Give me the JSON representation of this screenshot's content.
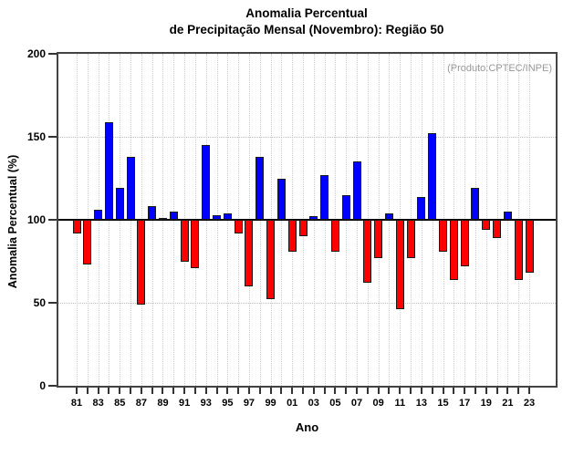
{
  "chart_data": {
    "type": "bar",
    "title_lines": [
      "Anomalia Percentual",
      "de Precipitação Mensal (Novembro): Região 50"
    ],
    "title": "Anomalia Percentual de Precipitação Mensal (Novembro): Região 50",
    "xlabel": "Ano",
    "ylabel": "Anomalia Percentual (%)",
    "annotation": "(Produto:CPTEC/INPE)",
    "ylim": [
      0,
      200
    ],
    "yticks": [
      "0",
      "50",
      "100",
      "150",
      "200"
    ],
    "ytick_values": [
      0,
      50,
      100,
      150,
      200
    ],
    "grid_y_dotted": [
      50,
      150
    ],
    "baseline": 100,
    "grid": "dotted vertical line per year, dotted horizontal at 50 and 150, solid black line at 100",
    "legend_position": "none",
    "categories": [
      "1981",
      "1982",
      "1983",
      "1984",
      "1985",
      "1986",
      "1987",
      "1988",
      "1989",
      "1990",
      "1991",
      "1992",
      "1993",
      "1994",
      "1995",
      "1996",
      "1997",
      "1998",
      "1999",
      "2000",
      "2001",
      "2002",
      "2003",
      "2004",
      "2005",
      "2006",
      "2007",
      "2008",
      "2009",
      "2010",
      "2011",
      "2012",
      "2013",
      "2014",
      "2015",
      "2016",
      "2017",
      "2018",
      "2019",
      "2020",
      "2021",
      "2022",
      "2023"
    ],
    "xtick_labels": [
      "81",
      "83",
      "85",
      "87",
      "89",
      "91",
      "93",
      "95",
      "97",
      "99",
      "01",
      "03",
      "05",
      "07",
      "09",
      "11",
      "13",
      "15",
      "17",
      "19",
      "21",
      "23"
    ],
    "values": [
      92,
      73,
      106,
      159,
      119,
      138,
      49,
      108,
      101,
      105,
      75,
      71,
      145,
      103,
      104,
      92,
      60,
      138,
      52,
      125,
      81,
      90,
      102,
      127,
      81,
      115,
      135,
      62,
      77,
      104,
      46,
      77,
      114,
      152,
      81,
      64,
      72,
      119,
      94,
      89,
      105,
      64,
      68
    ],
    "colors": {
      "above_baseline": "#0000ff",
      "below_baseline": "#ff0000",
      "bar_outline": "#1a1a1a",
      "annotation_text": "#999999",
      "frame": "#444444",
      "baseline_color": "#000000"
    }
  }
}
